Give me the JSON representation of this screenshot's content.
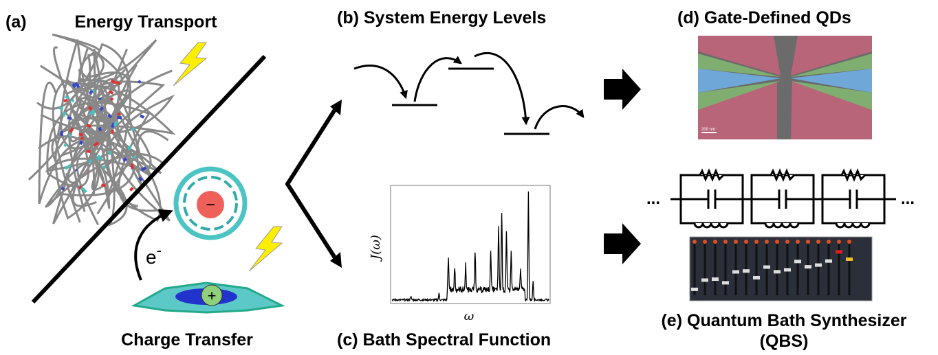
{
  "panels": {
    "a": {
      "label": "(a)",
      "title": "Energy Transport",
      "subtitle": "Charge Transfer",
      "electron": "e",
      "electron_charge": "-",
      "cation": "+",
      "anion": "−"
    },
    "b": {
      "label": "(b)",
      "title": "System Energy Levels"
    },
    "c": {
      "label": "(c)",
      "title": "Bath Spectral Function",
      "y_label": "J(ω)",
      "x_label": "ω"
    },
    "d": {
      "label": "(d)",
      "title": "Gate-Defined QDs",
      "scale_bar": "200 nm"
    },
    "e": {
      "label": "(e)",
      "title": "Quantum Bath Synthesizer",
      "title_line2": "(QBS)",
      "ellipsis": "..."
    }
  }
}
